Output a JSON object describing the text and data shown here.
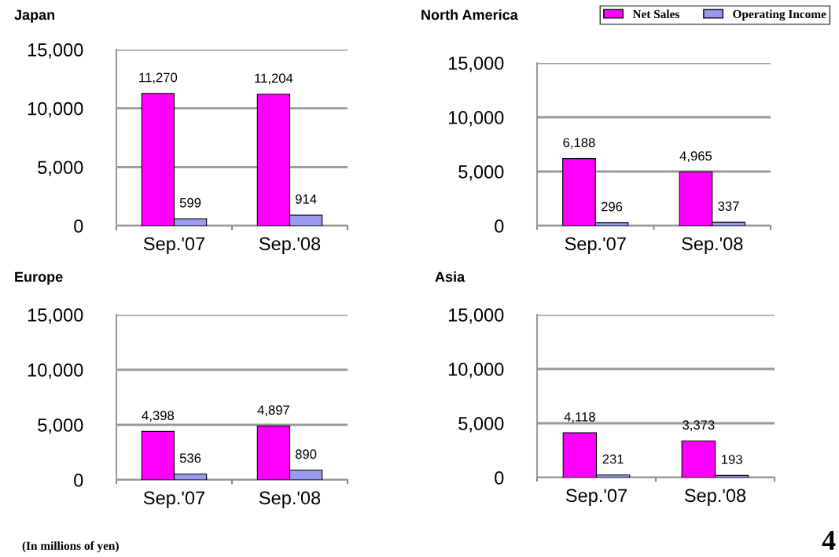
{
  "chart_data": [
    {
      "type": "bar",
      "title": "Japan",
      "categories": [
        "Sep.'07",
        "Sep.'08"
      ],
      "series": [
        {
          "color": "#ff00ff",
          "values": [
            11270,
            11204
          ],
          "value_labels": [
            "11,270",
            "11,204"
          ]
        },
        {
          "color": "#9999ee",
          "values": [
            599,
            914
          ],
          "value_labels": [
            "599",
            "914"
          ]
        }
      ],
      "ylim": [
        0,
        15000
      ],
      "yticks": [
        {
          "value": 0,
          "label": "0"
        },
        {
          "value": 5000,
          "label": "5,000"
        },
        {
          "value": 10000,
          "label": "10,000"
        },
        {
          "value": 15000,
          "label": "15,000"
        }
      ],
      "grid": "y"
    },
    {
      "type": "bar",
      "title": "North America",
      "categories": [
        "Sep.'07",
        "Sep.'08"
      ],
      "series": [
        {
          "name": "Net Sales",
          "color": "#ff00ff",
          "values": [
            6188,
            4965
          ],
          "value_labels": [
            "6,188",
            "4,965"
          ]
        },
        {
          "name": "Operating Income",
          "color": "#9999ee",
          "values": [
            296,
            337
          ],
          "value_labels": [
            "296",
            "337"
          ]
        }
      ],
      "ylim": [
        0,
        15000
      ],
      "yticks": [
        {
          "value": 0,
          "label": "0"
        },
        {
          "value": 5000,
          "label": "5,000"
        },
        {
          "value": 10000,
          "label": "10,000"
        },
        {
          "value": 15000,
          "label": "15,000"
        }
      ],
      "grid": "y",
      "legend": "top right"
    },
    {
      "type": "bar",
      "title": "Europe",
      "categories": [
        "Sep.'07",
        "Sep.'08"
      ],
      "series": [
        {
          "color": "#ff00ff",
          "values": [
            4398,
            4897
          ],
          "value_labels": [
            "4,398",
            "4,897"
          ]
        },
        {
          "color": "#9999ee",
          "values": [
            536,
            890
          ],
          "value_labels": [
            "536",
            "890"
          ]
        }
      ],
      "ylim": [
        0,
        15000
      ],
      "yticks": [
        {
          "value": 0,
          "label": "0"
        },
        {
          "value": 5000,
          "label": "5,000"
        },
        {
          "value": 10000,
          "label": "10,000"
        },
        {
          "value": 15000,
          "label": "15,000"
        }
      ],
      "grid": "y",
      "annotations": [
        "(In millions of yen)"
      ]
    },
    {
      "type": "bar",
      "title": "Asia",
      "categories": [
        "Sep.'07",
        "Sep.'08"
      ],
      "series": [
        {
          "color": "#ff00ff",
          "values": [
            4118,
            3373
          ],
          "value_labels": [
            "4,118",
            "3,373"
          ]
        },
        {
          "color": "#9999ee",
          "values": [
            231,
            193
          ],
          "value_labels": [
            "231",
            "193"
          ]
        }
      ],
      "ylim": [
        0,
        15000
      ],
      "yticks": [
        {
          "value": 0,
          "label": "0"
        },
        {
          "value": 5000,
          "label": "5,000"
        },
        {
          "value": 10000,
          "label": "10,000"
        },
        {
          "value": 15000,
          "label": "15,000"
        }
      ],
      "grid": "y",
      "annotations": [
        "4"
      ]
    }
  ]
}
